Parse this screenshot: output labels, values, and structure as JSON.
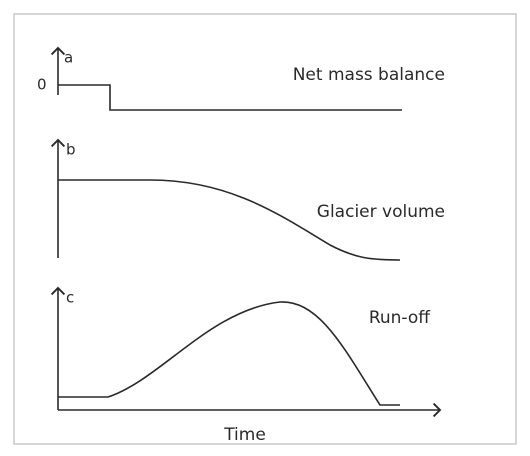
{
  "panels": [
    {
      "letter": "a",
      "title": "Net mass balance",
      "zero_label": "0"
    },
    {
      "letter": "b",
      "title": "Glacier volume"
    },
    {
      "letter": "c",
      "title": "Run-off"
    }
  ],
  "x_axis_label": "Time"
}
